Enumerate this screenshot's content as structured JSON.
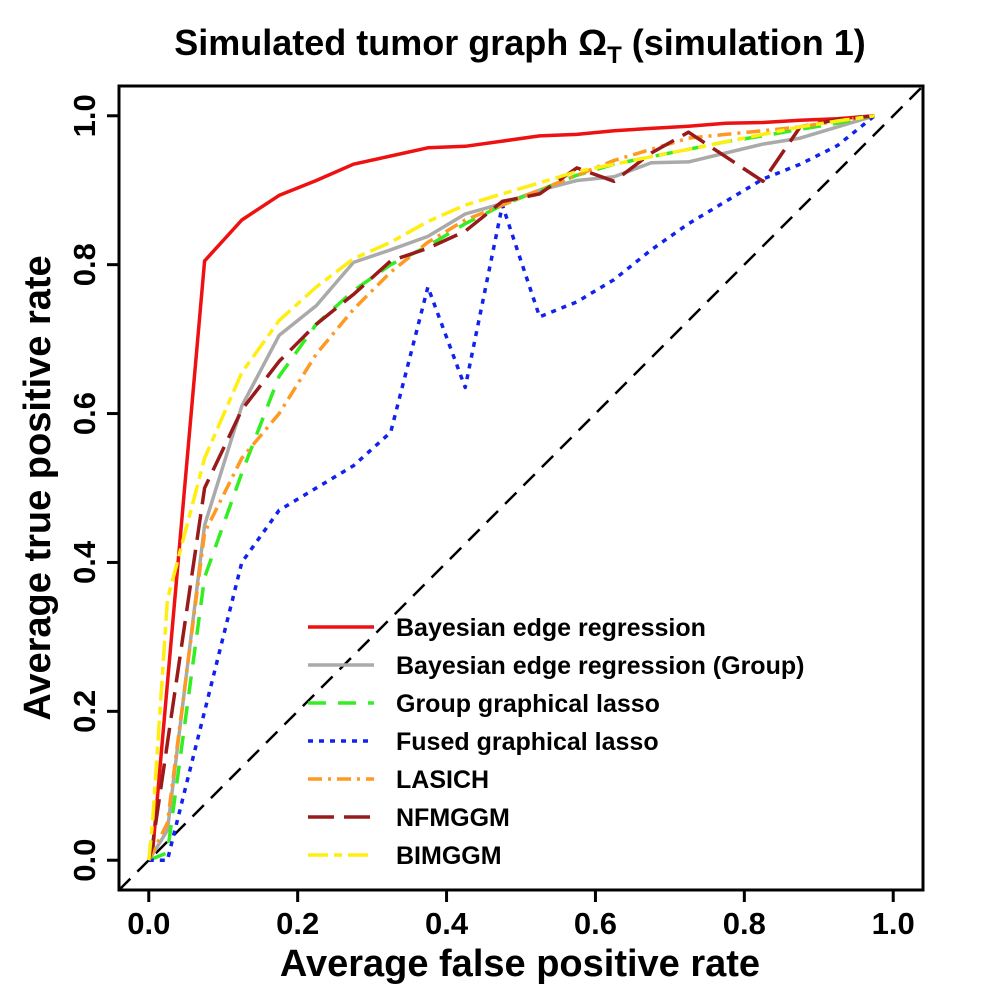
{
  "chart_data": {
    "type": "line",
    "title": "Simulated tumor graph Ω",
    "title_subscript": "T",
    "title_suffix": " (simulation 1)",
    "xlabel": "Average false positive rate",
    "ylabel": "Average true positive rate",
    "xlim": [
      -0.04,
      1.04
    ],
    "ylim": [
      -0.04,
      1.04
    ],
    "xticks": [
      "0.0",
      "0.2",
      "0.4",
      "0.6",
      "0.8",
      "1.0"
    ],
    "yticks": [
      "0.0",
      "0.2",
      "0.4",
      "0.6",
      "0.8",
      "1.0"
    ],
    "legend_position": "bottom-right",
    "reference_line": {
      "name": "diagonal",
      "color": "#000000",
      "dash": "dashed",
      "points": [
        [
          -0.04,
          -0.04
        ],
        [
          1.04,
          1.04
        ]
      ]
    },
    "series": [
      {
        "name": "Bayesian edge regression",
        "color": "#ee1111",
        "dash": "solid",
        "points": [
          [
            0,
            0
          ],
          [
            0.005,
            0.01
          ],
          [
            0.075,
            0.805
          ],
          [
            0.125,
            0.86
          ],
          [
            0.175,
            0.893
          ],
          [
            0.225,
            0.913
          ],
          [
            0.275,
            0.935
          ],
          [
            0.325,
            0.946
          ],
          [
            0.375,
            0.957
          ],
          [
            0.425,
            0.959
          ],
          [
            0.475,
            0.966
          ],
          [
            0.525,
            0.973
          ],
          [
            0.575,
            0.975
          ],
          [
            0.625,
            0.98
          ],
          [
            0.675,
            0.983
          ],
          [
            0.725,
            0.986
          ],
          [
            0.775,
            0.99
          ],
          [
            0.825,
            0.991
          ],
          [
            0.875,
            0.994
          ],
          [
            0.925,
            0.996
          ],
          [
            0.975,
            1.0
          ]
        ]
      },
      {
        "name": "Bayesian edge regression (Group)",
        "color": "#aaaaaa",
        "dash": "solid",
        "points": [
          [
            0,
            0
          ],
          [
            0.025,
            0.04
          ],
          [
            0.075,
            0.45
          ],
          [
            0.125,
            0.61
          ],
          [
            0.175,
            0.705
          ],
          [
            0.225,
            0.745
          ],
          [
            0.275,
            0.803
          ],
          [
            0.325,
            0.82
          ],
          [
            0.375,
            0.838
          ],
          [
            0.425,
            0.868
          ],
          [
            0.475,
            0.882
          ],
          [
            0.525,
            0.9
          ],
          [
            0.575,
            0.913
          ],
          [
            0.625,
            0.918
          ],
          [
            0.675,
            0.937
          ],
          [
            0.725,
            0.938
          ],
          [
            0.775,
            0.95
          ],
          [
            0.825,
            0.962
          ],
          [
            0.875,
            0.97
          ],
          [
            0.925,
            0.985
          ],
          [
            0.975,
            1.0
          ]
        ]
      },
      {
        "name": "Group graphical lasso",
        "color": "#33ee22",
        "dash": "dashed",
        "points": [
          [
            0,
            0
          ],
          [
            0.025,
            0.01
          ],
          [
            0.075,
            0.38
          ],
          [
            0.125,
            0.52
          ],
          [
            0.175,
            0.65
          ],
          [
            0.225,
            0.72
          ],
          [
            0.275,
            0.765
          ],
          [
            0.325,
            0.8
          ],
          [
            0.375,
            0.825
          ],
          [
            0.425,
            0.855
          ],
          [
            0.475,
            0.88
          ],
          [
            0.525,
            0.9
          ],
          [
            0.575,
            0.92
          ],
          [
            0.625,
            0.935
          ],
          [
            0.675,
            0.945
          ],
          [
            0.725,
            0.955
          ],
          [
            0.775,
            0.965
          ],
          [
            0.825,
            0.973
          ],
          [
            0.875,
            0.982
          ],
          [
            0.925,
            0.99
          ],
          [
            0.975,
            1.0
          ]
        ]
      },
      {
        "name": "Fused graphical lasso",
        "color": "#1122ee",
        "dash": "dotted",
        "points": [
          [
            0,
            0
          ],
          [
            0.025,
            0.0
          ],
          [
            0.075,
            0.2
          ],
          [
            0.125,
            0.4
          ],
          [
            0.175,
            0.47
          ],
          [
            0.225,
            0.5
          ],
          [
            0.275,
            0.53
          ],
          [
            0.325,
            0.575
          ],
          [
            0.375,
            0.77
          ],
          [
            0.425,
            0.635
          ],
          [
            0.475,
            0.88
          ],
          [
            0.525,
            0.73
          ],
          [
            0.575,
            0.75
          ],
          [
            0.625,
            0.78
          ],
          [
            0.675,
            0.82
          ],
          [
            0.725,
            0.855
          ],
          [
            0.775,
            0.885
          ],
          [
            0.825,
            0.915
          ],
          [
            0.875,
            0.935
          ],
          [
            0.925,
            0.96
          ],
          [
            0.975,
            1.0
          ]
        ]
      },
      {
        "name": "LASICH",
        "color": "#ff9922",
        "dash": "dashdot",
        "points": [
          [
            0,
            0
          ],
          [
            0.025,
            0.05
          ],
          [
            0.075,
            0.44
          ],
          [
            0.125,
            0.54
          ],
          [
            0.175,
            0.6
          ],
          [
            0.225,
            0.68
          ],
          [
            0.275,
            0.74
          ],
          [
            0.325,
            0.79
          ],
          [
            0.375,
            0.83
          ],
          [
            0.425,
            0.86
          ],
          [
            0.475,
            0.88
          ],
          [
            0.525,
            0.9
          ],
          [
            0.575,
            0.92
          ],
          [
            0.625,
            0.94
          ],
          [
            0.675,
            0.955
          ],
          [
            0.725,
            0.97
          ],
          [
            0.775,
            0.975
          ],
          [
            0.825,
            0.98
          ],
          [
            0.875,
            0.985
          ],
          [
            0.925,
            0.993
          ],
          [
            0.975,
            1.0
          ]
        ]
      },
      {
        "name": "NFMGGM",
        "color": "#991a1a",
        "dash": "longdash",
        "points": [
          [
            0,
            0
          ],
          [
            0.005,
            0.02
          ],
          [
            0.075,
            0.5
          ],
          [
            0.125,
            0.605
          ],
          [
            0.175,
            0.67
          ],
          [
            0.225,
            0.72
          ],
          [
            0.275,
            0.76
          ],
          [
            0.325,
            0.805
          ],
          [
            0.375,
            0.822
          ],
          [
            0.425,
            0.845
          ],
          [
            0.475,
            0.885
          ],
          [
            0.525,
            0.895
          ],
          [
            0.575,
            0.93
          ],
          [
            0.625,
            0.912
          ],
          [
            0.675,
            0.95
          ],
          [
            0.725,
            0.978
          ],
          [
            0.775,
            0.945
          ],
          [
            0.825,
            0.912
          ],
          [
            0.875,
            0.985
          ],
          [
            0.925,
            0.995
          ],
          [
            0.975,
            1.0
          ]
        ]
      },
      {
        "name": "BIMGGM",
        "color": "#ffee11",
        "dash": "twodash",
        "points": [
          [
            0,
            0
          ],
          [
            0.005,
            0.05
          ],
          [
            0.025,
            0.35
          ],
          [
            0.075,
            0.54
          ],
          [
            0.125,
            0.655
          ],
          [
            0.175,
            0.725
          ],
          [
            0.225,
            0.77
          ],
          [
            0.275,
            0.808
          ],
          [
            0.325,
            0.83
          ],
          [
            0.375,
            0.858
          ],
          [
            0.425,
            0.88
          ],
          [
            0.475,
            0.895
          ],
          [
            0.525,
            0.91
          ],
          [
            0.575,
            0.925
          ],
          [
            0.625,
            0.935
          ],
          [
            0.675,
            0.945
          ],
          [
            0.725,
            0.955
          ],
          [
            0.775,
            0.965
          ],
          [
            0.825,
            0.975
          ],
          [
            0.875,
            0.985
          ],
          [
            0.925,
            0.993
          ],
          [
            0.975,
            1.0
          ]
        ]
      }
    ]
  }
}
